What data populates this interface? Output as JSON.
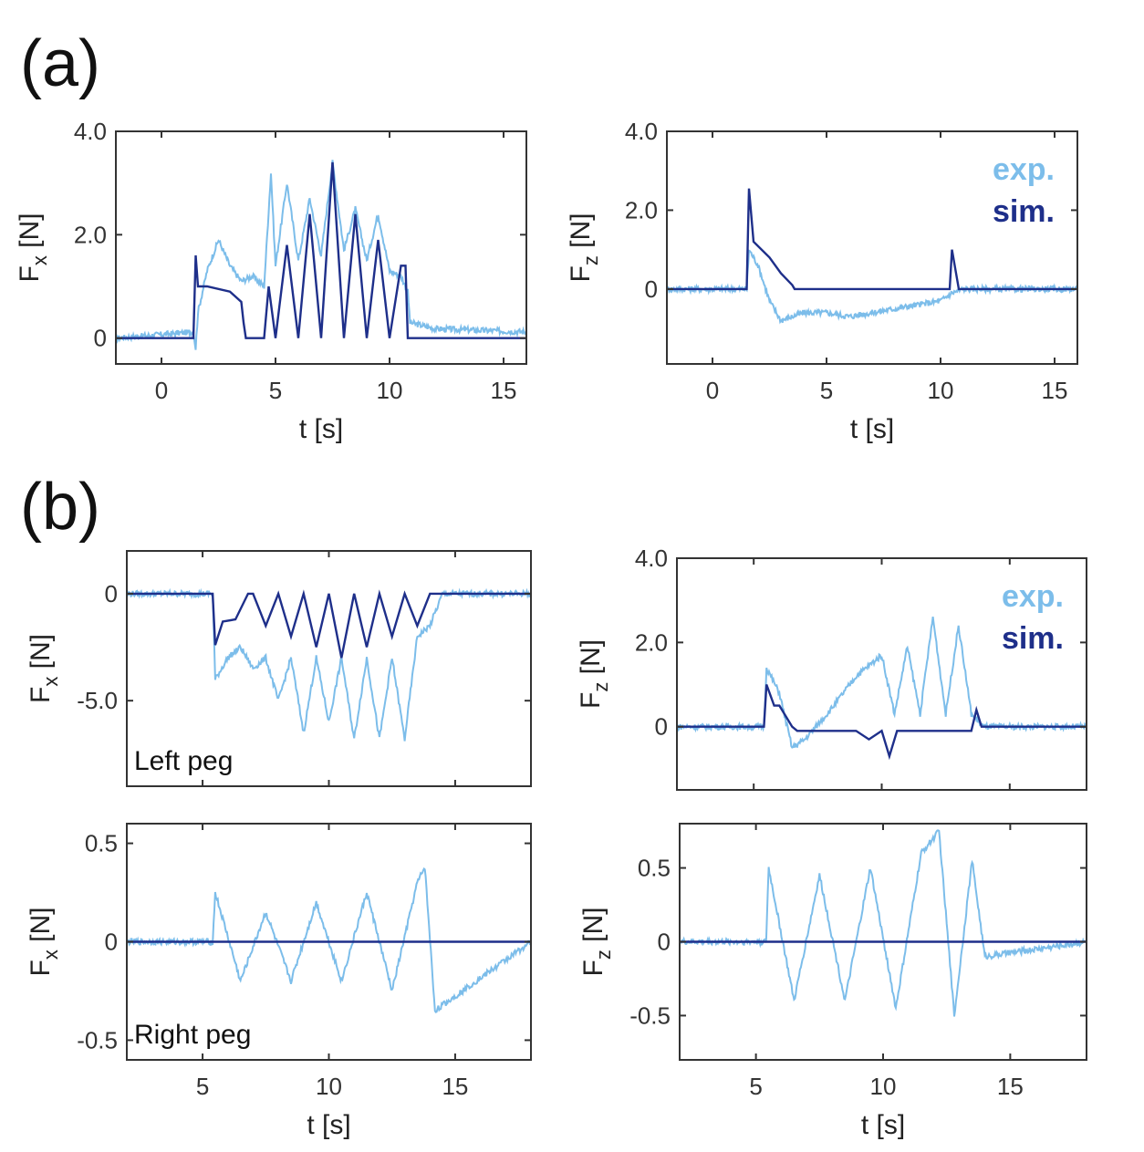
{
  "panel_labels": {
    "a": "(a)",
    "b": "(b)"
  },
  "colors": {
    "exp": "#7cbdea",
    "sim": "#1e2f8a",
    "axis": "#333333"
  },
  "chart_data": [
    {
      "id": "a_fx",
      "type": "line",
      "panel": "(a)",
      "xlabel": "t [s]",
      "ylabel": "F",
      "ylabel_sub": "x",
      "ylabel_unit": " [N]",
      "xlim": [
        -2,
        16
      ],
      "ylim": [
        -0.5,
        4.0
      ],
      "xticks": [
        0,
        5,
        10,
        15
      ],
      "yticks": [
        0,
        2.0,
        4.0
      ],
      "ytick_labels": [
        "0",
        "2.0",
        "4.0"
      ],
      "show_xtick_labels": true,
      "series": [
        {
          "name": "exp.",
          "x": [
            -2,
            1.4,
            1.5,
            1.6,
            2.0,
            2.5,
            3.0,
            3.5,
            4.0,
            4.5,
            4.8,
            5.0,
            5.5,
            6.0,
            6.5,
            7.0,
            7.5,
            8.0,
            8.5,
            9.0,
            9.5,
            10.0,
            10.5,
            10.8,
            10.9,
            12,
            16
          ],
          "y": [
            0.0,
            0.12,
            -0.2,
            0.5,
            1.3,
            1.9,
            1.4,
            1.1,
            1.2,
            1.0,
            3.2,
            1.4,
            3.0,
            1.5,
            2.7,
            1.6,
            3.4,
            1.7,
            2.5,
            1.5,
            2.4,
            1.3,
            1.2,
            0.9,
            0.3,
            0.18,
            0.12
          ]
        },
        {
          "name": "sim.",
          "x": [
            -2,
            1.4,
            1.5,
            1.6,
            2.0,
            3.0,
            3.5,
            3.6,
            3.7,
            4.5,
            4.7,
            5.0,
            5.5,
            6.0,
            6.5,
            7.0,
            7.5,
            8.0,
            8.5,
            9.0,
            9.5,
            10.0,
            10.5,
            10.7,
            10.8,
            16
          ],
          "y": [
            0.0,
            0.0,
            1.6,
            1.0,
            1.0,
            0.9,
            0.7,
            0.3,
            0.0,
            0.0,
            1.0,
            0.0,
            1.8,
            0.0,
            2.4,
            0.0,
            3.4,
            0.0,
            2.4,
            0.0,
            1.9,
            0.0,
            1.4,
            1.4,
            0.0,
            0.0
          ]
        }
      ]
    },
    {
      "id": "a_fz",
      "type": "line",
      "panel": "(a)",
      "xlabel": "t [s]",
      "ylabel": "F",
      "ylabel_sub": "z",
      "ylabel_unit": " [N]",
      "xlim": [
        -2,
        16
      ],
      "ylim": [
        -1.9,
        4.0
      ],
      "xticks": [
        0,
        5,
        10,
        15
      ],
      "yticks": [
        0,
        2.0,
        4.0
      ],
      "ytick_labels": [
        "0",
        "2.0",
        "4.0"
      ],
      "show_xtick_labels": true,
      "legend": [
        "exp.",
        "sim."
      ],
      "series": [
        {
          "name": "exp.",
          "x": [
            -2,
            1.5,
            1.6,
            2.0,
            2.5,
            3.0,
            3.5,
            4.0,
            5.0,
            6.0,
            7.0,
            8.0,
            9.0,
            10.0,
            10.5,
            11,
            16
          ],
          "y": [
            0.0,
            0.0,
            1.0,
            0.6,
            -0.3,
            -0.8,
            -0.7,
            -0.6,
            -0.6,
            -0.7,
            -0.6,
            -0.5,
            -0.4,
            -0.3,
            -0.1,
            0.0,
            0.0
          ]
        },
        {
          "name": "sim.",
          "x": [
            -2,
            1.5,
            1.6,
            1.8,
            2.5,
            3.0,
            3.5,
            3.6,
            10.3,
            10.4,
            10.5,
            10.8,
            16
          ],
          "y": [
            0.0,
            0.0,
            2.55,
            1.2,
            0.8,
            0.4,
            0.1,
            0.0,
            0.0,
            0.0,
            1.0,
            0.0,
            0.0
          ]
        }
      ]
    },
    {
      "id": "b_left_fx",
      "type": "line",
      "panel": "(b)",
      "annotation": "Left peg",
      "xlabel": "",
      "ylabel": "F",
      "ylabel_sub": "x",
      "ylabel_unit": " [N]",
      "xlim": [
        2,
        18
      ],
      "ylim": [
        -9,
        2
      ],
      "xticks": [
        5,
        10,
        15
      ],
      "yticks": [
        -5.0,
        0
      ],
      "ytick_labels": [
        "-5.0",
        "0"
      ],
      "show_xtick_labels": false,
      "series": [
        {
          "name": "exp.",
          "x": [
            2,
            5.4,
            5.5,
            6.0,
            6.5,
            7.0,
            7.5,
            8.0,
            8.5,
            9.0,
            9.5,
            10.0,
            10.5,
            11.0,
            11.5,
            12.0,
            12.5,
            13.0,
            13.5,
            14.0,
            14.5,
            18
          ],
          "y": [
            0.0,
            0.0,
            -4.0,
            -3.0,
            -2.5,
            -3.5,
            -3.0,
            -5.0,
            -3.0,
            -6.5,
            -3.0,
            -6.0,
            -3.0,
            -6.8,
            -3.0,
            -6.8,
            -3.0,
            -6.8,
            -2.0,
            -1.5,
            0.0,
            0.0
          ]
        },
        {
          "name": "sim.",
          "x": [
            2,
            5.4,
            5.5,
            5.8,
            6.3,
            6.8,
            7.0,
            7.5,
            8.0,
            8.5,
            9.0,
            9.5,
            10.0,
            10.5,
            11.0,
            11.5,
            12.0,
            12.5,
            13.0,
            13.5,
            14.0,
            18
          ],
          "y": [
            0.0,
            0.0,
            -2.4,
            -1.3,
            -1.2,
            0.0,
            0.0,
            -1.5,
            0.0,
            -2.0,
            0.0,
            -2.5,
            0.0,
            -3.0,
            0.0,
            -2.5,
            0.0,
            -2.0,
            0.0,
            -1.5,
            0.0,
            0.0
          ]
        }
      ]
    },
    {
      "id": "b_left_fz",
      "type": "line",
      "panel": "(b)",
      "xlabel": "",
      "ylabel": "F",
      "ylabel_sub": "z",
      "ylabel_unit": " [N]",
      "xlim": [
        2,
        18
      ],
      "ylim": [
        -1.5,
        4.0
      ],
      "xticks": [
        5,
        10,
        15
      ],
      "yticks": [
        0,
        2.0,
        4.0
      ],
      "ytick_labels": [
        "0",
        "2.0",
        "4.0"
      ],
      "show_xtick_labels": false,
      "legend": [
        "exp.",
        "sim."
      ],
      "series": [
        {
          "name": "exp.",
          "x": [
            2,
            5.4,
            5.5,
            6.0,
            6.5,
            7.0,
            8.0,
            9.0,
            10.0,
            10.5,
            11.0,
            11.5,
            12.0,
            12.5,
            13.0,
            13.5,
            14.0,
            18
          ],
          "y": [
            0.0,
            0.0,
            1.4,
            0.8,
            -0.5,
            -0.3,
            0.4,
            1.2,
            1.7,
            0.3,
            1.9,
            0.3,
            2.6,
            0.3,
            2.4,
            0.3,
            0.0,
            0.0
          ]
        },
        {
          "name": "sim.",
          "x": [
            2,
            5.4,
            5.5,
            5.8,
            6.0,
            6.5,
            6.7,
            8.0,
            9.0,
            9.5,
            10.0,
            10.3,
            10.6,
            11.0,
            12.0,
            13.0,
            13.5,
            13.7,
            13.9,
            18
          ],
          "y": [
            0.0,
            0.0,
            1.0,
            0.5,
            0.5,
            0.0,
            -0.1,
            -0.1,
            -0.1,
            -0.3,
            -0.1,
            -0.7,
            -0.1,
            -0.1,
            -0.1,
            -0.1,
            -0.1,
            0.4,
            0.0,
            0.0
          ]
        }
      ]
    },
    {
      "id": "b_right_fx",
      "type": "line",
      "panel": "(b)",
      "annotation": "Right peg",
      "xlabel": "t [s]",
      "ylabel": "F",
      "ylabel_sub": "x",
      "ylabel_unit": " [N]",
      "xlim": [
        2,
        18
      ],
      "ylim": [
        -0.6,
        0.6
      ],
      "xticks": [
        5,
        10,
        15
      ],
      "yticks": [
        -0.5,
        0,
        0.5
      ],
      "ytick_labels": [
        "-0.5",
        "0",
        "0.5"
      ],
      "show_xtick_labels": true,
      "series": [
        {
          "name": "exp.",
          "x": [
            2,
            5.4,
            5.5,
            6.5,
            7.5,
            8.5,
            9.5,
            10.5,
            11.5,
            12.5,
            13.5,
            13.8,
            14.2,
            18
          ],
          "y": [
            0.0,
            0.0,
            0.25,
            -0.2,
            0.15,
            -0.2,
            0.2,
            -0.2,
            0.25,
            -0.25,
            0.3,
            0.38,
            -0.35,
            0.0
          ]
        },
        {
          "name": "sim.",
          "x": [
            2,
            18
          ],
          "y": [
            0.0,
            0.0
          ]
        }
      ]
    },
    {
      "id": "b_right_fz",
      "type": "line",
      "panel": "(b)",
      "xlabel": "t [s]",
      "ylabel": "F",
      "ylabel_sub": "z",
      "ylabel_unit": " [N]",
      "xlim": [
        2,
        18
      ],
      "ylim": [
        -0.8,
        0.8
      ],
      "xticks": [
        5,
        10,
        15
      ],
      "yticks": [
        -0.5,
        0,
        0.5
      ],
      "ytick_labels": [
        "-0.5",
        "0",
        "0.5"
      ],
      "show_xtick_labels": true,
      "series": [
        {
          "name": "exp.",
          "x": [
            2,
            5.4,
            5.5,
            6.5,
            7.5,
            8.5,
            9.5,
            10.5,
            11.5,
            12.2,
            12.8,
            13.5,
            14.0,
            18
          ],
          "y": [
            0.0,
            0.0,
            0.5,
            -0.4,
            0.45,
            -0.4,
            0.5,
            -0.45,
            0.6,
            0.75,
            -0.5,
            0.55,
            -0.1,
            0.0
          ]
        },
        {
          "name": "sim.",
          "x": [
            2,
            18
          ],
          "y": [
            0.0,
            0.0
          ]
        }
      ]
    }
  ]
}
